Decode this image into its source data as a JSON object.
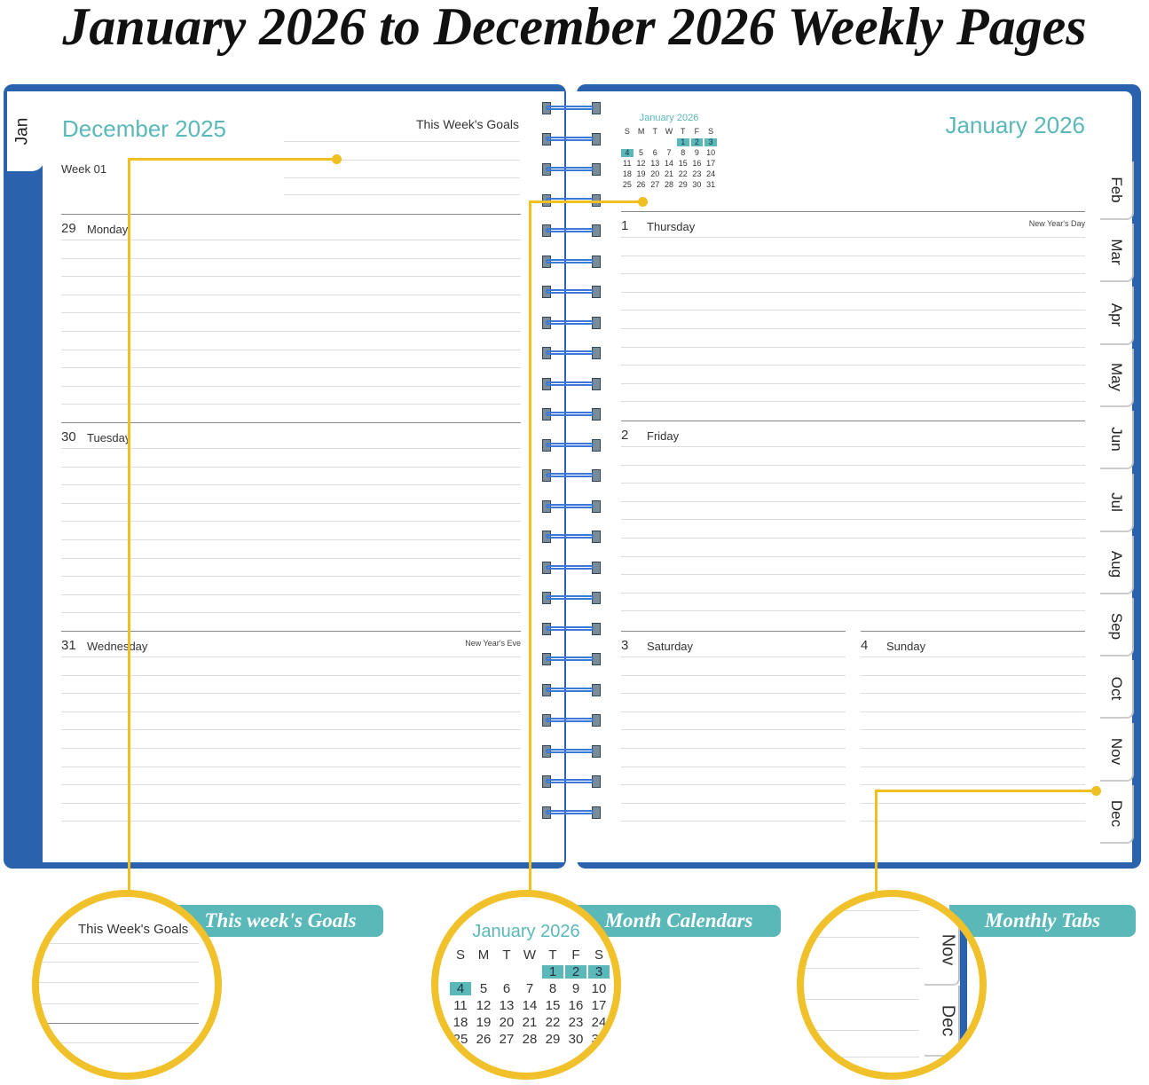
{
  "title": "January 2026 to December 2026 Weekly Pages",
  "left_page": {
    "tab": "Jan",
    "month_title": "December 2025",
    "goals_label": "This Week's Goals",
    "week_label": "Week 01",
    "days": [
      {
        "num": "29",
        "name": "Monday",
        "note": ""
      },
      {
        "num": "30",
        "name": "Tuesday",
        "note": ""
      },
      {
        "num": "31",
        "name": "Wednesday",
        "note": "New Year's Eve"
      }
    ]
  },
  "right_page": {
    "month_title": "January 2026",
    "mini_calendar": {
      "title": "January 2026",
      "weekdays": [
        "S",
        "M",
        "T",
        "W",
        "T",
        "F",
        "S"
      ],
      "cells": [
        "",
        "",
        "",
        "",
        "1",
        "2",
        "3",
        "4",
        "5",
        "6",
        "7",
        "8",
        "9",
        "10",
        "11",
        "12",
        "13",
        "14",
        "15",
        "16",
        "17",
        "18",
        "19",
        "20",
        "21",
        "22",
        "23",
        "24",
        "25",
        "26",
        "27",
        "28",
        "29",
        "30",
        "31"
      ],
      "highlighted": [
        "1",
        "2",
        "3",
        "4"
      ]
    },
    "days": [
      {
        "num": "1",
        "name": "Thursday",
        "note": "New Year's Day"
      },
      {
        "num": "2",
        "name": "Friday",
        "note": ""
      },
      {
        "num": "3",
        "name": "Saturday",
        "note": ""
      },
      {
        "num": "4",
        "name": "Sunday",
        "note": ""
      }
    ],
    "tabs": [
      "Feb",
      "Mar",
      "Apr",
      "May",
      "Jun",
      "Jul",
      "Aug",
      "Sep",
      "Oct",
      "Nov",
      "Dec"
    ]
  },
  "callouts": [
    {
      "banner": "This week's Goals",
      "zoom_text": "This Week's Goals"
    },
    {
      "banner": "Month Calendars",
      "zoom_text": "January 2026"
    },
    {
      "banner": "Monthly Tabs",
      "zoom_tabs": [
        "Nov",
        "Dec"
      ]
    }
  ],
  "colors": {
    "cover": "#2a62ad",
    "accent_teal": "#5ab8b8",
    "callout_yellow": "#f0bf22"
  }
}
